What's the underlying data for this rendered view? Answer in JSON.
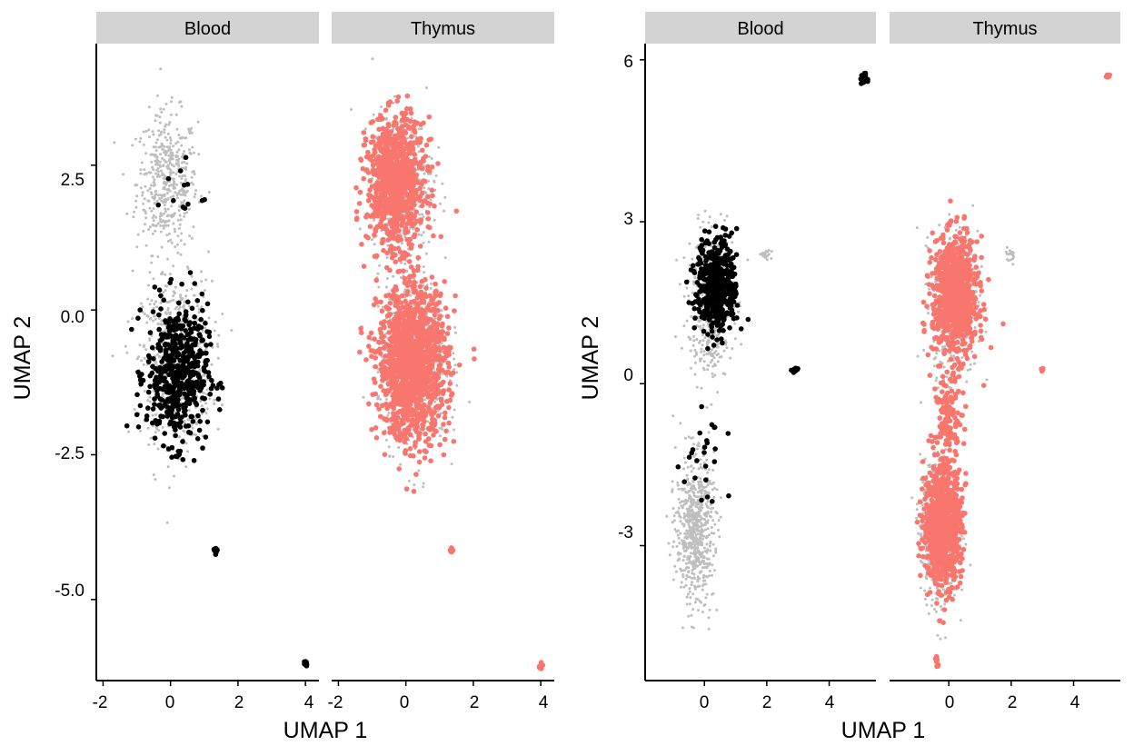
{
  "figure": {
    "panels": [
      {
        "facet": "Blood",
        "plot": 0,
        "point_color": "#000000"
      },
      {
        "facet": "Thymus",
        "plot": 0,
        "point_color": "#F8766D"
      },
      {
        "facet": "Blood",
        "plot": 1,
        "point_color": "#000000"
      },
      {
        "facet": "Thymus",
        "plot": 1,
        "point_color": "#F8766D"
      }
    ],
    "background_point_color": "#BEBEBE",
    "strip_color": "#D3D3D3"
  },
  "chart_data": [
    {
      "type": "scatter",
      "title": "",
      "xlabel": "UMAP 1",
      "ylabel": "UMAP 2",
      "facets": [
        "Blood",
        "Thymus"
      ],
      "xlim": [
        -2.2,
        4.4
      ],
      "ylim": [
        -6.4,
        4.6
      ],
      "x_ticks": [
        -2,
        0,
        2,
        4
      ],
      "x_tick_labels": [
        "-2",
        "0",
        "2",
        "4"
      ],
      "y_ticks": [
        2.5,
        0.0,
        -2.5,
        -5.0
      ],
      "y_tick_labels": [
        "2.5",
        "0.0",
        "-2.5",
        "-5.0"
      ],
      "grid": false,
      "legend": "none",
      "highlight_color": {
        "Blood": "#000000",
        "Thymus": "#F8766D"
      },
      "background_color": "#BEBEBE",
      "clusters": {
        "background": [
          {
            "cx": -0.1,
            "cy": 2.2,
            "sx": 0.75,
            "sy": 1.0,
            "n": 450
          },
          {
            "cx": 0.2,
            "cy": -0.9,
            "sx": 0.85,
            "sy": 1.15,
            "n": 700
          }
        ],
        "Blood": [
          {
            "cx": 0.2,
            "cy": -1.1,
            "sx": 0.75,
            "sy": 1.0,
            "n": 520
          },
          {
            "cx": 0.3,
            "cy": 2.0,
            "sx": 0.6,
            "sy": 0.5,
            "n": 12
          },
          {
            "cx": 1.35,
            "cy": -4.15,
            "sx": 0.04,
            "sy": 0.05,
            "n": 15
          },
          {
            "cx": 4.0,
            "cy": -6.1,
            "sx": 0.05,
            "sy": 0.04,
            "n": 25
          }
        ],
        "Thymus": [
          {
            "cx": -0.3,
            "cy": 2.2,
            "sx": 0.7,
            "sy": 0.9,
            "n": 900
          },
          {
            "cx": 0.2,
            "cy": -0.9,
            "sx": 0.85,
            "sy": 1.1,
            "n": 1300
          },
          {
            "cx": 1.35,
            "cy": -4.15,
            "sx": 0.04,
            "sy": 0.04,
            "n": 12
          },
          {
            "cx": 4.0,
            "cy": -6.15,
            "sx": 0.05,
            "sy": 0.04,
            "n": 15
          }
        ]
      }
    },
    {
      "type": "scatter",
      "title": "",
      "xlabel": "UMAP 1",
      "ylabel": "UMAP 2",
      "facets": [
        "Blood",
        "Thymus"
      ],
      "xlim": [
        -1.9,
        5.5
      ],
      "ylim": [
        -5.5,
        6.3
      ],
      "x_ticks": [
        0,
        2,
        4
      ],
      "x_tick_labels": [
        "0",
        "2",
        "4"
      ],
      "y_ticks": [
        6,
        3,
        0,
        -3
      ],
      "y_tick_labels": [
        "6",
        "3",
        "0",
        "-3"
      ],
      "grid": false,
      "legend": "none",
      "highlight_color": {
        "Blood": "#000000",
        "Thymus": "#F8766D"
      },
      "background_color": "#BEBEBE",
      "clusters": {
        "background": [
          {
            "cx": 0.2,
            "cy": 1.5,
            "sx": 0.6,
            "sy": 1.1,
            "n": 500
          },
          {
            "cx": -0.3,
            "cy": -2.7,
            "sx": 0.5,
            "sy": 1.1,
            "n": 650
          },
          {
            "cx": 2.0,
            "cy": 2.4,
            "sx": 0.15,
            "sy": 0.1,
            "n": 20
          }
        ],
        "Blood": [
          {
            "cx": 0.4,
            "cy": 1.8,
            "sx": 0.55,
            "sy": 0.75,
            "n": 430
          },
          {
            "cx": 0.0,
            "cy": -1.5,
            "sx": 0.6,
            "sy": 0.9,
            "n": 25
          },
          {
            "cx": 2.9,
            "cy": 0.25,
            "sx": 0.08,
            "sy": 0.04,
            "n": 10
          },
          {
            "cx": 5.1,
            "cy": 5.65,
            "sx": 0.08,
            "sy": 0.08,
            "n": 30
          }
        ],
        "Thymus": [
          {
            "cx": 0.2,
            "cy": 1.6,
            "sx": 0.6,
            "sy": 0.9,
            "n": 850
          },
          {
            "cx": 0.0,
            "cy": -0.6,
            "sx": 0.35,
            "sy": 0.6,
            "n": 120
          },
          {
            "cx": -0.2,
            "cy": -2.6,
            "sx": 0.5,
            "sy": 0.9,
            "n": 850
          },
          {
            "cx": -0.4,
            "cy": -5.15,
            "sx": 0.05,
            "sy": 0.1,
            "n": 10
          },
          {
            "cx": 3.0,
            "cy": 0.25,
            "sx": 0.04,
            "sy": 0.04,
            "n": 6
          },
          {
            "cx": 5.1,
            "cy": 5.7,
            "sx": 0.06,
            "sy": 0.06,
            "n": 8
          }
        ]
      }
    }
  ]
}
